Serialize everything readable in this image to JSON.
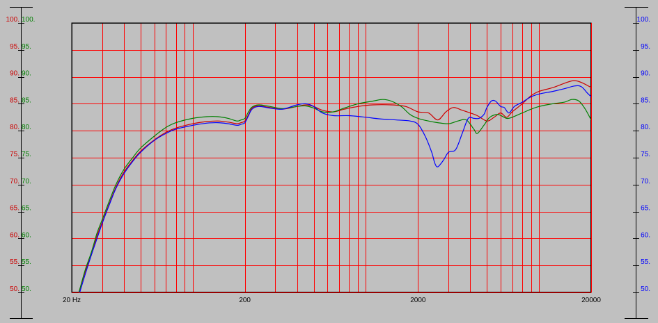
{
  "chart_data": {
    "type": "line",
    "title": "",
    "xlabel": "",
    "ylabel": "",
    "x_scale": "log",
    "xlim": [
      20,
      20000
    ],
    "ylim": [
      50,
      100
    ],
    "grid": true,
    "x_tick_labels": [
      {
        "value": 20,
        "label": "20 Hz"
      },
      {
        "value": 200,
        "label": "200"
      },
      {
        "value": 2000,
        "label": "2000"
      },
      {
        "value": 20000,
        "label": "20000"
      }
    ],
    "y_ticks": [
      50,
      55,
      60,
      65,
      70,
      75,
      80,
      85,
      90,
      95,
      100
    ],
    "left_axis_red_labels": [
      "100.",
      "95.",
      "90.",
      "85.",
      "80.",
      "75.",
      "70.",
      "65.",
      "60.",
      "55.",
      "50."
    ],
    "left_axis_green_labels": [
      "100.",
      "95.",
      "90.",
      "85.",
      "80.",
      "75.",
      "70.",
      "65.",
      "60.",
      "55.",
      "50."
    ],
    "right_axis_blue_labels": [
      "100.",
      "95.",
      "90.",
      "85.",
      "80.",
      "75.",
      "70.",
      "65.",
      "60.",
      "55.",
      "50."
    ],
    "colors": {
      "background": "#c0c0c0",
      "plot_background": "#c0c0c0",
      "grid": "#ff0000",
      "red": "#cc0000",
      "green": "#008000",
      "blue": "#0000ff",
      "axis": "#000000"
    },
    "series": [
      {
        "color": "red",
        "points": [
          [
            22,
            50
          ],
          [
            24,
            54
          ],
          [
            26,
            57
          ],
          [
            28,
            60.5
          ],
          [
            30,
            63
          ],
          [
            33,
            66.5
          ],
          [
            36,
            69.5
          ],
          [
            40,
            72.3
          ],
          [
            45,
            74.5
          ],
          [
            50,
            76.2
          ],
          [
            60,
            78.3
          ],
          [
            70,
            79.7
          ],
          [
            80,
            80.5
          ],
          [
            100,
            81.3
          ],
          [
            120,
            81.7
          ],
          [
            140,
            81.8
          ],
          [
            160,
            81.6
          ],
          [
            180,
            81.3
          ],
          [
            190,
            81.5
          ],
          [
            200,
            81.8
          ],
          [
            210,
            83
          ],
          [
            220,
            84.2
          ],
          [
            240,
            84.6
          ],
          [
            280,
            84.3
          ],
          [
            330,
            84
          ],
          [
            400,
            84.5
          ],
          [
            450,
            84.8
          ],
          [
            500,
            84.5
          ],
          [
            560,
            83.8
          ],
          [
            650,
            83.5
          ],
          [
            750,
            84
          ],
          [
            900,
            84.5
          ],
          [
            1100,
            84.8
          ],
          [
            1400,
            84.8
          ],
          [
            1700,
            84.5
          ],
          [
            2000,
            83.5
          ],
          [
            2300,
            83.3
          ],
          [
            2600,
            82
          ],
          [
            2900,
            83.5
          ],
          [
            3200,
            84.3
          ],
          [
            3600,
            83.8
          ],
          [
            4000,
            83.3
          ],
          [
            4400,
            82.8
          ],
          [
            5000,
            81.8
          ],
          [
            5500,
            82.5
          ],
          [
            6000,
            83.3
          ],
          [
            6500,
            82.5
          ],
          [
            7000,
            83.5
          ],
          [
            8000,
            85
          ],
          [
            9000,
            86.5
          ],
          [
            10000,
            87.3
          ],
          [
            12000,
            88
          ],
          [
            14000,
            88.8
          ],
          [
            16000,
            89.3
          ],
          [
            18000,
            88.8
          ],
          [
            20000,
            88
          ]
        ]
      },
      {
        "color": "green",
        "points": [
          [
            22,
            50
          ],
          [
            24,
            54.3
          ],
          [
            26,
            57.5
          ],
          [
            28,
            61
          ],
          [
            30,
            63.5
          ],
          [
            33,
            67
          ],
          [
            36,
            70
          ],
          [
            40,
            72.8
          ],
          [
            45,
            75
          ],
          [
            50,
            76.8
          ],
          [
            60,
            79
          ],
          [
            70,
            80.6
          ],
          [
            80,
            81.5
          ],
          [
            100,
            82.3
          ],
          [
            120,
            82.6
          ],
          [
            140,
            82.6
          ],
          [
            160,
            82.3
          ],
          [
            180,
            81.8
          ],
          [
            190,
            82
          ],
          [
            200,
            82.3
          ],
          [
            210,
            83.5
          ],
          [
            220,
            84.4
          ],
          [
            240,
            84.8
          ],
          [
            280,
            84.5
          ],
          [
            330,
            84.1
          ],
          [
            400,
            84.5
          ],
          [
            450,
            84.6
          ],
          [
            500,
            84.2
          ],
          [
            560,
            83.5
          ],
          [
            650,
            83.5
          ],
          [
            750,
            84.2
          ],
          [
            900,
            85
          ],
          [
            1100,
            85.5
          ],
          [
            1250,
            85.8
          ],
          [
            1400,
            85.5
          ],
          [
            1600,
            84.5
          ],
          [
            1800,
            83
          ],
          [
            2000,
            82.3
          ],
          [
            2300,
            81.8
          ],
          [
            2600,
            81.5
          ],
          [
            3000,
            81.3
          ],
          [
            3400,
            81.8
          ],
          [
            3800,
            82
          ],
          [
            4200,
            80.3
          ],
          [
            4400,
            79.5
          ],
          [
            4800,
            81
          ],
          [
            5200,
            82.5
          ],
          [
            5800,
            83
          ],
          [
            6500,
            82.3
          ],
          [
            7000,
            82.5
          ],
          [
            8000,
            83.3
          ],
          [
            9000,
            84
          ],
          [
            10000,
            84.5
          ],
          [
            12000,
            85
          ],
          [
            14000,
            85.3
          ],
          [
            15500,
            85.8
          ],
          [
            17000,
            85.5
          ],
          [
            18500,
            84
          ],
          [
            20000,
            82
          ]
        ]
      },
      {
        "color": "blue",
        "points": [
          [
            22,
            49.5
          ],
          [
            24,
            53.5
          ],
          [
            26,
            57
          ],
          [
            28,
            60
          ],
          [
            30,
            62.8
          ],
          [
            33,
            66.3
          ],
          [
            36,
            69.3
          ],
          [
            40,
            72
          ],
          [
            45,
            74.3
          ],
          [
            50,
            76
          ],
          [
            60,
            78.2
          ],
          [
            70,
            79.5
          ],
          [
            80,
            80.3
          ],
          [
            100,
            81
          ],
          [
            120,
            81.4
          ],
          [
            140,
            81.5
          ],
          [
            160,
            81.3
          ],
          [
            180,
            81
          ],
          [
            190,
            81.2
          ],
          [
            200,
            81.5
          ],
          [
            210,
            82.8
          ],
          [
            220,
            84
          ],
          [
            240,
            84.5
          ],
          [
            280,
            84.2
          ],
          [
            330,
            84
          ],
          [
            400,
            84.8
          ],
          [
            450,
            85
          ],
          [
            500,
            84.5
          ],
          [
            560,
            83.3
          ],
          [
            650,
            82.8
          ],
          [
            800,
            82.8
          ],
          [
            1000,
            82.5
          ],
          [
            1200,
            82.2
          ],
          [
            1500,
            82
          ],
          [
            1800,
            81.8
          ],
          [
            2000,
            81.2
          ],
          [
            2200,
            79
          ],
          [
            2400,
            76
          ],
          [
            2500,
            74
          ],
          [
            2600,
            73.3
          ],
          [
            2800,
            74.5
          ],
          [
            3000,
            76
          ],
          [
            3300,
            76.5
          ],
          [
            3600,
            79.5
          ],
          [
            3900,
            82.3
          ],
          [
            4200,
            82.3
          ],
          [
            4500,
            82.3
          ],
          [
            4800,
            83
          ],
          [
            5000,
            84.3
          ],
          [
            5300,
            85.5
          ],
          [
            5600,
            85.5
          ],
          [
            6000,
            84.5
          ],
          [
            6300,
            84.3
          ],
          [
            6700,
            83.3
          ],
          [
            7200,
            84.5
          ],
          [
            8000,
            85.3
          ],
          [
            9000,
            86.3
          ],
          [
            10000,
            86.8
          ],
          [
            12000,
            87.3
          ],
          [
            14000,
            87.8
          ],
          [
            16000,
            88.3
          ],
          [
            17500,
            88.2
          ],
          [
            19000,
            87
          ],
          [
            20000,
            86.3
          ]
        ]
      }
    ]
  }
}
